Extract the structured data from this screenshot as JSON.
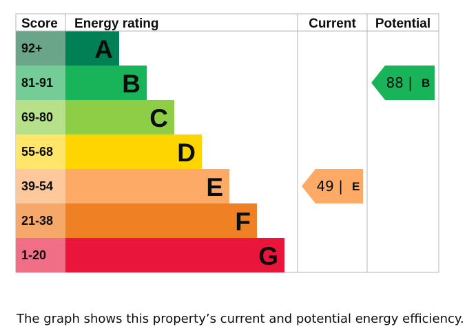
{
  "chart_data": {
    "type": "bar",
    "headers": {
      "score": "Score",
      "rating": "Energy rating",
      "current": "Current",
      "potential": "Potential"
    },
    "bands": [
      {
        "letter": "A",
        "range": "92+",
        "color": "#008054",
        "score_bg": "#6aa58a"
      },
      {
        "letter": "B",
        "range": "81-91",
        "color": "#19b459",
        "score_bg": "#74cd96"
      },
      {
        "letter": "C",
        "range": "69-80",
        "color": "#8dce46",
        "score_bg": "#b7e08a"
      },
      {
        "letter": "D",
        "range": "55-68",
        "color": "#ffd500",
        "score_bg": "#ffe66b"
      },
      {
        "letter": "E",
        "range": "39-54",
        "color": "#fcaa65",
        "score_bg": "#fdc89b"
      },
      {
        "letter": "F",
        "range": "21-38",
        "color": "#ef8023",
        "score_bg": "#f5a86a"
      },
      {
        "letter": "G",
        "range": "1-20",
        "color": "#e9153b",
        "score_bg": "#f06f86"
      }
    ],
    "current": {
      "value": 49,
      "letter": "E",
      "color": "#fcaa65"
    },
    "potential": {
      "value": 88,
      "letter": "B",
      "color": "#19b459"
    }
  },
  "caption": "The graph shows this property’s current and potential energy efficiency."
}
